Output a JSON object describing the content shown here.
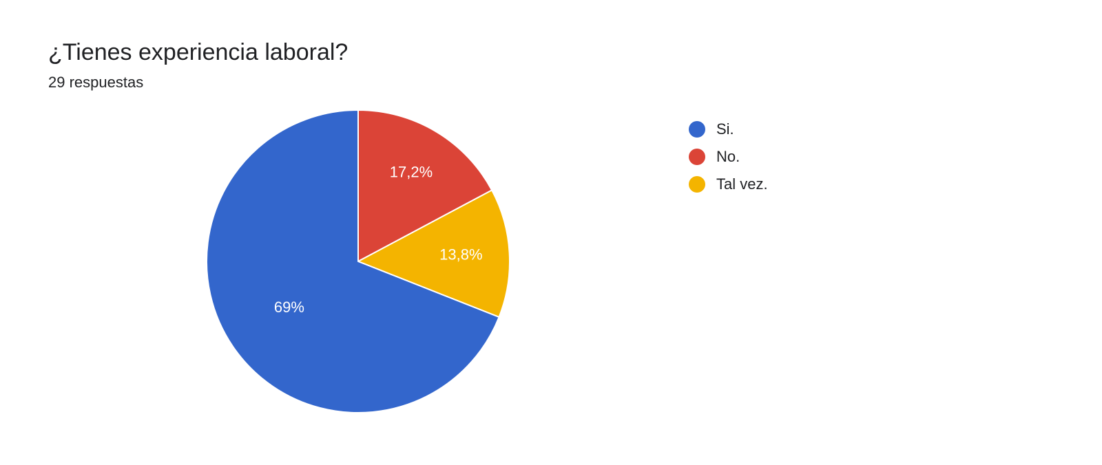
{
  "header": {
    "title": "¿Tienes experiencia laboral?",
    "subtitle": "29 respuestas"
  },
  "chart": {
    "type": "pie",
    "start_angle_deg": -90,
    "radius": 220,
    "background_color": "#ffffff",
    "stroke_color": "#ffffff",
    "stroke_width": 2,
    "label_color": "#ffffff",
    "label_fontsize": 22,
    "title_fontsize": 34,
    "subtitle_fontsize": 22,
    "legend_fontsize": 22,
    "legend_swatch_radius": 12,
    "slices": [
      {
        "key": "no",
        "label": "No.",
        "value": 17.2,
        "display": "17,2%",
        "color": "#db4437",
        "show_label": true
      },
      {
        "key": "talvez",
        "label": "Tal vez.",
        "value": 13.8,
        "display": "13,8%",
        "color": "#f4b400",
        "show_label": true
      },
      {
        "key": "si",
        "label": "Si.",
        "value": 69.0,
        "display": "69%",
        "color": "#3366cc",
        "show_label": true
      }
    ],
    "legend_order": [
      "si",
      "no",
      "talvez"
    ]
  }
}
